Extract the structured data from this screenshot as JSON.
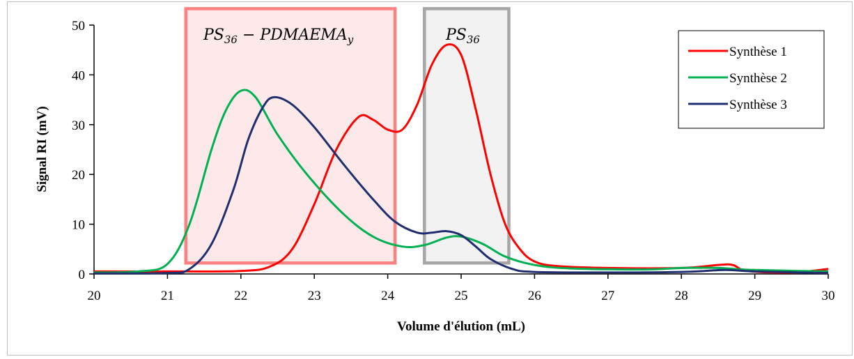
{
  "chart_data": {
    "type": "line",
    "xlabel": "Volume d'élution (mL)",
    "ylabel": "Signal RI (mV)",
    "xlim": [
      20,
      30
    ],
    "ylim": [
      0,
      50
    ],
    "x_ticks": [
      "20",
      "21",
      "22",
      "23",
      "24",
      "25",
      "26",
      "27",
      "28",
      "29",
      "30"
    ],
    "y_ticks": [
      "0",
      "10",
      "20",
      "30",
      "40",
      "50"
    ],
    "legend_position": "top-right",
    "series": [
      {
        "name": "Synthèse 1",
        "color": "#ff0000",
        "points": [
          [
            20,
            0.5
          ],
          [
            21,
            0.5
          ],
          [
            22,
            0.6
          ],
          [
            22.4,
            1.5
          ],
          [
            22.7,
            5
          ],
          [
            23,
            14
          ],
          [
            23.3,
            25
          ],
          [
            23.6,
            31.5
          ],
          [
            23.8,
            31
          ],
          [
            24,
            29
          ],
          [
            24.2,
            29
          ],
          [
            24.4,
            34
          ],
          [
            24.6,
            42
          ],
          [
            24.8,
            46
          ],
          [
            25,
            44
          ],
          [
            25.2,
            33
          ],
          [
            25.4,
            20
          ],
          [
            25.6,
            10
          ],
          [
            25.8,
            5
          ],
          [
            26,
            2.5
          ],
          [
            26.3,
            1.6
          ],
          [
            27,
            1.2
          ],
          [
            28,
            1.2
          ],
          [
            28.5,
            1.8
          ],
          [
            28.7,
            1.8
          ],
          [
            28.9,
            0.6
          ],
          [
            29.5,
            0.3
          ],
          [
            30,
            1
          ]
        ]
      },
      {
        "name": "Synthèse 2",
        "color": "#00b050",
        "points": [
          [
            20,
            0.3
          ],
          [
            20.6,
            0.5
          ],
          [
            21,
            2
          ],
          [
            21.3,
            10
          ],
          [
            21.6,
            25
          ],
          [
            21.8,
            33
          ],
          [
            22,
            36.8
          ],
          [
            22.2,
            35.5
          ],
          [
            22.5,
            28
          ],
          [
            22.9,
            20
          ],
          [
            23.4,
            12
          ],
          [
            23.8,
            7.5
          ],
          [
            24.2,
            5.5
          ],
          [
            24.5,
            5.8
          ],
          [
            24.8,
            7.3
          ],
          [
            25,
            7.5
          ],
          [
            25.3,
            6
          ],
          [
            25.6,
            3.5
          ],
          [
            26,
            1.8
          ],
          [
            26.5,
            1.1
          ],
          [
            27.5,
            0.9
          ],
          [
            28,
            1.2
          ],
          [
            28.5,
            1.2
          ],
          [
            29,
            0.8
          ],
          [
            30,
            0.5
          ]
        ]
      },
      {
        "name": "Synthèse 3",
        "color": "#1f2e6e",
        "points": [
          [
            20,
            0.1
          ],
          [
            21,
            0.2
          ],
          [
            21.3,
            1
          ],
          [
            21.6,
            6
          ],
          [
            21.9,
            17
          ],
          [
            22.1,
            27
          ],
          [
            22.3,
            33.5
          ],
          [
            22.45,
            35.5
          ],
          [
            22.7,
            34
          ],
          [
            23,
            29.5
          ],
          [
            23.4,
            22
          ],
          [
            23.8,
            15
          ],
          [
            24.1,
            10.5
          ],
          [
            24.4,
            8.3
          ],
          [
            24.6,
            8.3
          ],
          [
            24.8,
            8.6
          ],
          [
            25,
            7.8
          ],
          [
            25.2,
            5.5
          ],
          [
            25.4,
            3
          ],
          [
            25.7,
            1
          ],
          [
            26,
            0.4
          ],
          [
            27,
            0.3
          ],
          [
            28,
            0.4
          ],
          [
            28.6,
            0.8
          ],
          [
            29,
            0.5
          ],
          [
            30,
            0.2
          ]
        ]
      }
    ],
    "regions": [
      {
        "label_main": "PS",
        "label_sub1": "36",
        "label_mid": " − PDMAEMA",
        "label_sub2": "y",
        "x_from": 21.25,
        "x_to": 24.1,
        "y_from": 2.2,
        "y_to": 53.3,
        "stroke": "#ff8080",
        "fill": "#fde9e9"
      },
      {
        "label_main": "PS",
        "label_sub1": "36",
        "label_mid": "",
        "label_sub2": "",
        "x_from": 24.5,
        "x_to": 25.65,
        "y_from": 2.2,
        "y_to": 53.3,
        "stroke": "#a6a6a6",
        "fill": "#f2f2f2"
      }
    ]
  }
}
